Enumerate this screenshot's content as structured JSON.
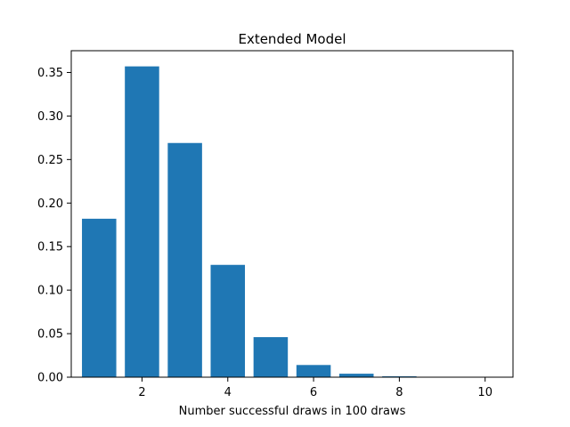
{
  "chart_data": {
    "type": "bar",
    "title": "Extended Model",
    "xlabel": "Number successful draws in 100 draws",
    "ylabel": "",
    "x": [
      1,
      2,
      3,
      4,
      5,
      6,
      7,
      8,
      9,
      10
    ],
    "values": [
      0.182,
      0.357,
      0.269,
      0.129,
      0.046,
      0.014,
      0.004,
      0.001,
      0.0003,
      0.0001
    ],
    "xlim": [
      0.35,
      10.65
    ],
    "ylim": [
      0,
      0.375
    ],
    "xticks": [
      2,
      4,
      6,
      8,
      10
    ],
    "yticks": [
      0.0,
      0.05,
      0.1,
      0.15,
      0.2,
      0.25,
      0.3,
      0.35
    ],
    "xtick_labels": [
      "2",
      "4",
      "6",
      "8",
      "10"
    ],
    "ytick_labels": [
      "0.00",
      "0.05",
      "0.10",
      "0.15",
      "0.20",
      "0.25",
      "0.30",
      "0.35"
    ],
    "bar_width": 0.8,
    "bar_color": "#1f77b4",
    "grid": false,
    "legend": "none"
  }
}
